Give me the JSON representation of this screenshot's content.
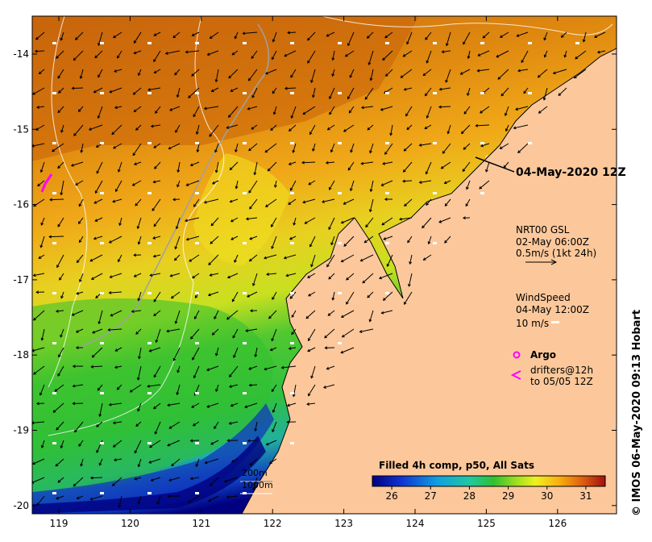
{
  "map": {
    "date_label": "04-May-2020 12Z",
    "lat_ticks": [
      "-14",
      "-15",
      "-16",
      "-17",
      "-18",
      "-19",
      "-20"
    ],
    "lon_ticks": [
      "119",
      "120",
      "121",
      "122",
      "123",
      "124",
      "125",
      "126"
    ],
    "credit": "© IMOS 06-May-2020 09:13 Hobart"
  },
  "legend": {
    "current": {
      "line1": "NRT00 GSL",
      "line2": "02-May 06:00Z",
      "line3": "0.5m/s (1kt 24h)"
    },
    "wind": {
      "line1": "WindSpeed",
      "line2": "04-May 12:00Z",
      "line3": "10 m/s"
    },
    "argo_label": "Argo",
    "drifters": {
      "line1": "drifters@12h",
      "line2": "to 05/05 12Z"
    },
    "isobaths": [
      "200m",
      "1000m"
    ]
  },
  "colorbar": {
    "title": "Filled 4h comp, p50, All Sats",
    "labels": [
      "26",
      "27",
      "28",
      "29",
      "30",
      "31"
    ],
    "range": [
      25.5,
      31.5
    ]
  },
  "colors": {
    "land": "#fcc89b",
    "sst_warm": "#c8620a",
    "sst_mid": "#f0a818",
    "sst_yellow": "#e8e020",
    "sst_green": "#30c030",
    "sst_cyan": "#20b0c8",
    "sst_blue": "#1030b0",
    "sst_navy": "#000080",
    "argo": "#ff00ff"
  }
}
